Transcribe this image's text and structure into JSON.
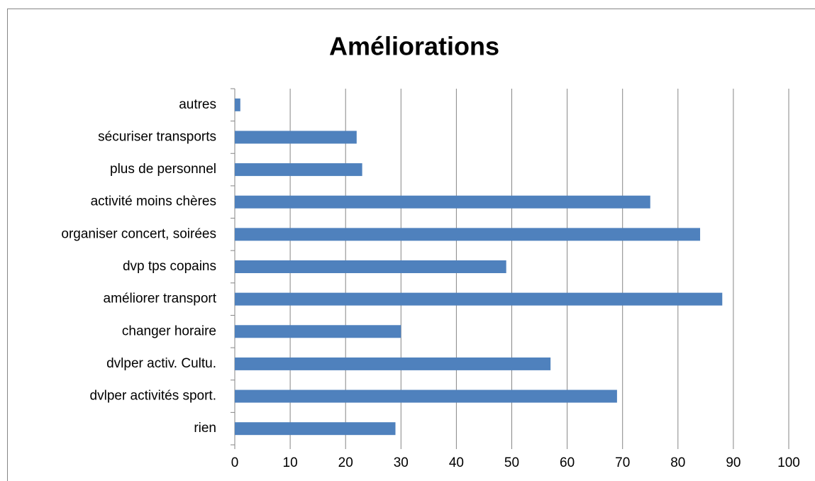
{
  "chart_data": {
    "type": "bar",
    "orientation": "horizontal",
    "title": "Améliorations",
    "categories": [
      "rien",
      "dvlper activités sport.",
      "dvlper activ. Cultu.",
      "changer horaire",
      "améliorer transport",
      "dvp tps copains",
      "organiser concert, soirées",
      "activité moins chères",
      "plus de personnel",
      "sécuriser transports",
      "autres"
    ],
    "values": [
      29,
      69,
      57,
      30,
      88,
      49,
      84,
      75,
      23,
      22,
      1
    ],
    "color": "#4f81bd",
    "xlim": [
      0,
      100
    ],
    "xticks": [
      0,
      10,
      20,
      30,
      40,
      50,
      60,
      70,
      80,
      90,
      100
    ],
    "grid": true
  }
}
